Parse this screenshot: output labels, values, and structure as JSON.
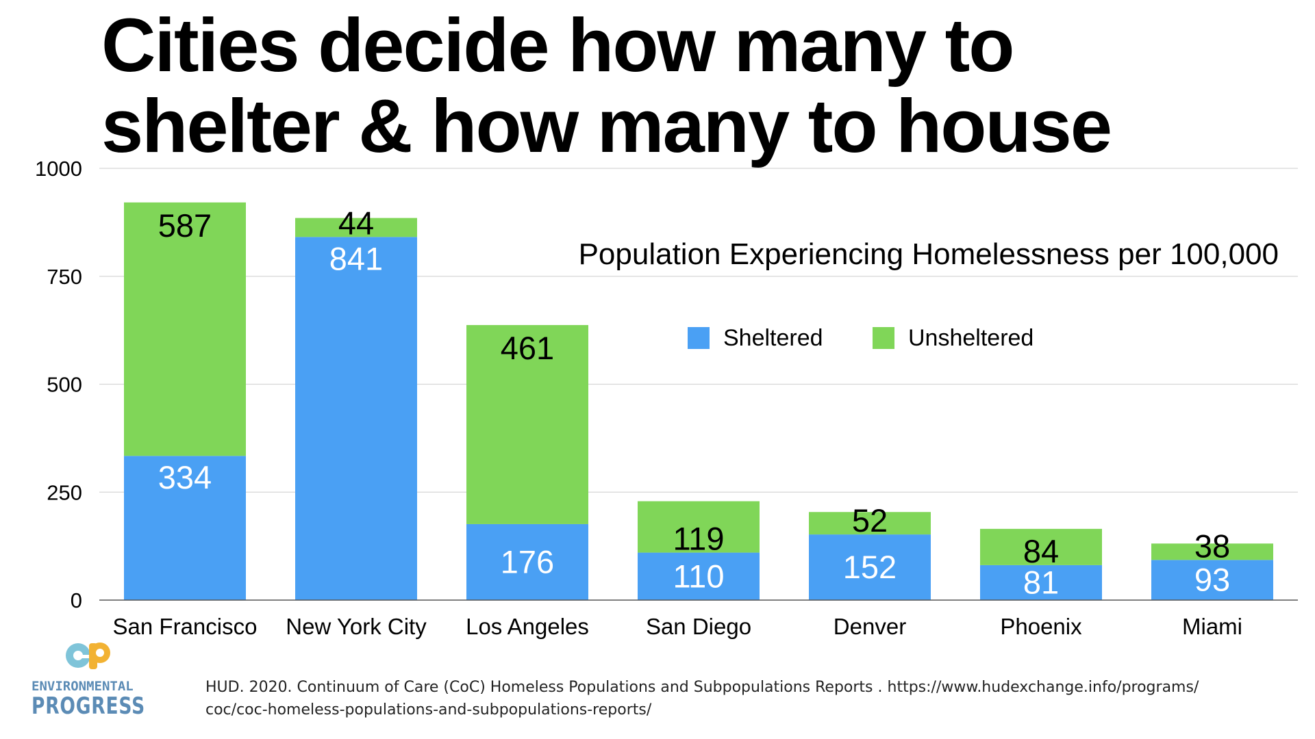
{
  "slide": {
    "title_line1": "Cities decide how many to",
    "title_line2": "shelter & how many to house",
    "source_line1": "HUD. 2020. Continuum of Care (CoC) Homeless Populations and Subpopulations Reports . https://www.hudexchange.info/programs/",
    "source_line2": "coc/coc-homeless-populations-and-subpopulations-reports/",
    "logo": {
      "line1": "ENVIRONMENTAL",
      "line2": "PROGRESS",
      "mark": "ep",
      "mark_color_left": "#7fc4d9",
      "mark_color_right": "#f2b233"
    }
  },
  "chart_data": {
    "type": "bar",
    "stacked": true,
    "title": "Population Experiencing Homelessness per 100,000",
    "categories": [
      "San Francisco",
      "New York City",
      "Los Angeles",
      "San Diego",
      "Denver",
      "Phoenix",
      "Miami"
    ],
    "series": [
      {
        "name": "Sheltered",
        "color": "#4aa0f4",
        "label_color": "#ffffff",
        "values": [
          334,
          841,
          176,
          110,
          152,
          81,
          93
        ]
      },
      {
        "name": "Unsheltered",
        "color": "#80d658",
        "label_color": "#000000",
        "values": [
          587,
          44,
          461,
          119,
          52,
          84,
          38
        ]
      }
    ],
    "ylim": [
      0,
      1000
    ],
    "yticks": [
      0,
      250,
      500,
      750,
      1000
    ],
    "grid": true,
    "legend": "top-right",
    "xlabel": "",
    "ylabel": ""
  }
}
